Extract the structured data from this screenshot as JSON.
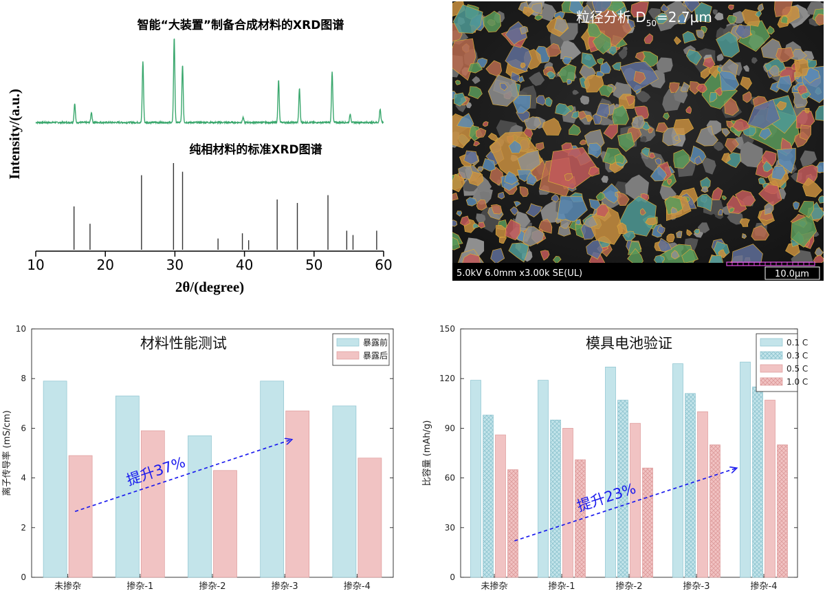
{
  "chart_data": [
    {
      "type": "line",
      "panel": "xrd",
      "xlabel": "2θ/(degree)",
      "ylabel": "Intensity/(a.u.)",
      "xlim": [
        10,
        60
      ],
      "xticks": [
        "10",
        "20",
        "30",
        "40",
        "50",
        "60"
      ],
      "annotations": [
        "智能“大装置”制备合成材料的XRD图谱",
        "纯相材料的标准XRD图谱"
      ],
      "colors": {
        "measured": "#3aa76d",
        "reference": "#333333"
      },
      "series": [
        {
          "kind": "measured",
          "peaks": [
            {
              "x": 15.6,
              "y": 0.22
            },
            {
              "x": 18.0,
              "y": 0.12
            },
            {
              "x": 25.4,
              "y": 0.72
            },
            {
              "x": 29.9,
              "y": 1.0
            },
            {
              "x": 31.1,
              "y": 0.68
            },
            {
              "x": 39.8,
              "y": 0.06
            },
            {
              "x": 44.9,
              "y": 0.5
            },
            {
              "x": 47.9,
              "y": 0.4
            },
            {
              "x": 52.6,
              "y": 0.6
            },
            {
              "x": 55.2,
              "y": 0.1
            },
            {
              "x": 59.5,
              "y": 0.16
            }
          ]
        },
        {
          "kind": "reference",
          "sticks": [
            {
              "x": 15.5,
              "y": 0.5
            },
            {
              "x": 17.8,
              "y": 0.3
            },
            {
              "x": 25.2,
              "y": 0.86
            },
            {
              "x": 29.8,
              "y": 1.0
            },
            {
              "x": 31.1,
              "y": 0.9
            },
            {
              "x": 36.2,
              "y": 0.13
            },
            {
              "x": 39.7,
              "y": 0.19
            },
            {
              "x": 40.6,
              "y": 0.11
            },
            {
              "x": 44.7,
              "y": 0.58
            },
            {
              "x": 47.6,
              "y": 0.54
            },
            {
              "x": 52.0,
              "y": 0.63
            },
            {
              "x": 54.7,
              "y": 0.22
            },
            {
              "x": 55.6,
              "y": 0.17
            },
            {
              "x": 59.0,
              "y": 0.22
            }
          ]
        }
      ]
    },
    {
      "type": "bar",
      "panel": "conductivity",
      "title": "材料性能测试",
      "ylabel": "离子传导率 (mS/cm)",
      "ylim": [
        0,
        10
      ],
      "yticks": [
        "0",
        "2",
        "4",
        "6",
        "8",
        "10"
      ],
      "categories": [
        "未掺杂",
        "掺杂-1",
        "掺杂-2",
        "掺杂-3",
        "掺杂-4"
      ],
      "series": [
        {
          "name": "暴露前",
          "values": [
            7.9,
            7.3,
            5.7,
            7.9,
            6.9
          ],
          "color": "#c3e4ea",
          "stroke": "#8cc3cf"
        },
        {
          "name": "暴露后",
          "values": [
            4.9,
            5.9,
            4.3,
            6.7,
            4.8
          ],
          "color": "#f1c3c3",
          "stroke": "#dd9a9a"
        }
      ],
      "legend_position": "top-right",
      "arrow": {
        "label": "提升37%",
        "color": "#1a1aee",
        "from": {
          "x": 0.1,
          "y": 2.65
        },
        "to": {
          "x": 3.1,
          "y": 5.55
        }
      }
    },
    {
      "type": "bar",
      "panel": "cell",
      "title": "模具电池验证",
      "ylabel": "比容量 (mAh/g)",
      "ylim": [
        0,
        150
      ],
      "yticks": [
        "0",
        "30",
        "60",
        "90",
        "120",
        "150"
      ],
      "categories": [
        "未掺杂",
        "掺杂-1",
        "掺杂-2",
        "掺杂-3",
        "掺杂-4"
      ],
      "series": [
        {
          "name": "0.1 C",
          "values": [
            119,
            119,
            127,
            129,
            130
          ],
          "color": "#c3e4ea",
          "stroke": "#8cc3cf",
          "pattern": "solid"
        },
        {
          "name": "0.3 C",
          "values": [
            98,
            95,
            107,
            111,
            115
          ],
          "color": "#c3e4ea",
          "stroke": "#8cc3cf",
          "pattern": "cross"
        },
        {
          "name": "0.5 C",
          "values": [
            86,
            90,
            93,
            100,
            107
          ],
          "color": "#f1c3c3",
          "stroke": "#dd9a9a",
          "pattern": "solid"
        },
        {
          "name": "1.0 C",
          "values": [
            65,
            71,
            66,
            80,
            80
          ],
          "color": "#f1c3c3",
          "stroke": "#dd9a9a",
          "pattern": "cross"
        }
      ],
      "legend_position": "top-right",
      "arrow": {
        "label": "提升23%",
        "color": "#1a1aee",
        "from": {
          "x": 0.3,
          "y": 22
        },
        "to": {
          "x": 3.6,
          "y": 66
        }
      }
    }
  ],
  "sem": {
    "title": "粒径分析 D",
    "title_sub": "50",
    "title_tail": "=2.7μm",
    "footer_text": "5.0kV 6.0mm x3.00k SE(UL)",
    "scale_label": "10.0μm",
    "particle_colors": [
      "#5b8bb5",
      "#c25b5b",
      "#c98f3f",
      "#4f9a95",
      "#5f6f99",
      "#b96b4f",
      "#8f8f8f",
      "#5a9a5a"
    ]
  }
}
